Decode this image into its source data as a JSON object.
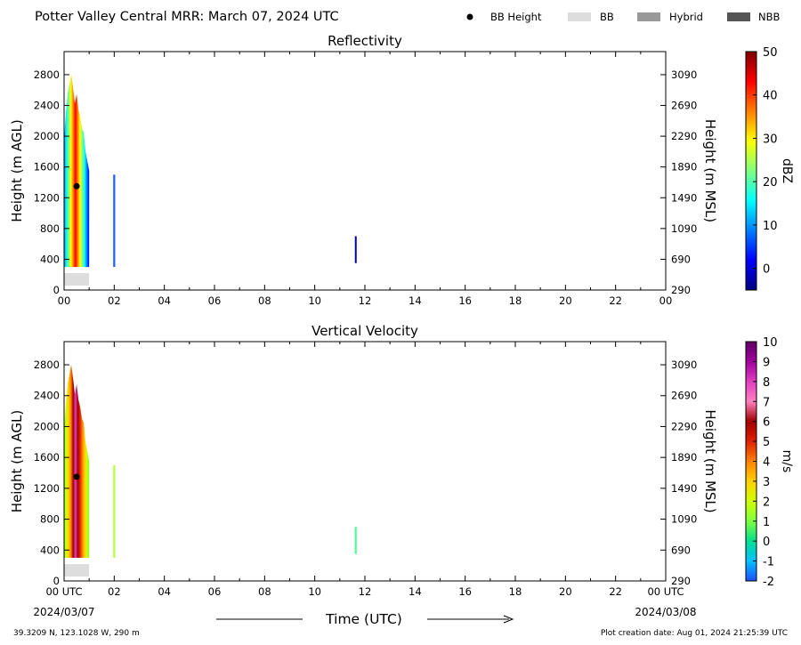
{
  "header": {
    "title": "Potter Valley Central MRR:  March 07, 2024 UTC",
    "legend": [
      {
        "label": "BB Height",
        "kind": "dot",
        "color": "#000000"
      },
      {
        "label": "BB",
        "kind": "swatch",
        "color": "#dddddd"
      },
      {
        "label": "Hybrid",
        "kind": "swatch",
        "color": "#999999"
      },
      {
        "label": "NBB",
        "kind": "swatch",
        "color": "#555555"
      }
    ]
  },
  "footer": {
    "location": "39.3209 N, 123.1028 W, 290 m",
    "creation": "Plot creation date: Aug 01, 2024 21:25:39 UTC",
    "xlabel": "Time (UTC)",
    "start_date": "2024/03/07",
    "end_date": "2024/03/08"
  },
  "chart_data": [
    {
      "type": "heatmap",
      "title": "Reflectivity",
      "ylabel": "Height (m AGL)",
      "y2label": "Height (m MSL)",
      "xticks": [
        "00",
        "02",
        "04",
        "06",
        "08",
        "10",
        "12",
        "14",
        "16",
        "18",
        "20",
        "22",
        "00"
      ],
      "yticks": [
        0,
        400,
        800,
        1200,
        1600,
        2000,
        2400,
        2800
      ],
      "y2ticks": [
        290,
        690,
        1090,
        1490,
        1890,
        2290,
        2690,
        3090
      ],
      "xlim": [
        0,
        24
      ],
      "ylim": [
        0,
        3100
      ],
      "colorbar": {
        "label": "dBZ",
        "min": -5,
        "max": 50,
        "ticks": [
          0,
          10,
          20,
          30,
          40,
          50
        ],
        "colors": [
          "#00007f",
          "#0000ff",
          "#007fff",
          "#00ffff",
          "#7fff7f",
          "#ffff00",
          "#ff7f00",
          "#ff0000",
          "#7f0000"
        ]
      },
      "bb_height": {
        "time": 0.5,
        "height": 1350
      },
      "bb_band": {
        "start": 0.0,
        "end": 1.0
      },
      "echoes": [
        {
          "t0": 0.0,
          "t1": 1.0,
          "h_base": 300,
          "h_top": 2800,
          "core_center": 0.5,
          "core_halfwidth": 0.28
        },
        {
          "t0": 1.96,
          "t1": 2.04,
          "h_base": 300,
          "h_top": 1500,
          "core_center": 2.0,
          "core_halfwidth": 0
        },
        {
          "t0": 11.6,
          "t1": 11.66,
          "h_base": 350,
          "h_top": 700,
          "core_center": 11.63,
          "core_halfwidth": 0
        }
      ]
    },
    {
      "type": "heatmap",
      "title": "Vertical Velocity",
      "ylabel": "Height (m AGL)",
      "y2label": "Height (m MSL)",
      "xticks": [
        "00 UTC",
        "02",
        "04",
        "06",
        "08",
        "10",
        "12",
        "14",
        "16",
        "18",
        "20",
        "22",
        "00 UTC"
      ],
      "yticks": [
        0,
        400,
        800,
        1200,
        1600,
        2000,
        2400,
        2800
      ],
      "y2ticks": [
        290,
        690,
        1090,
        1490,
        1890,
        2290,
        2690,
        3090
      ],
      "xlim": [
        0,
        24
      ],
      "ylim": [
        0,
        3100
      ],
      "colorbar": {
        "label": "m/s",
        "min": -2,
        "max": 10,
        "ticks": [
          -2,
          -1,
          0,
          1,
          2,
          3,
          4,
          5,
          6,
          7,
          8,
          9,
          10
        ],
        "colors": [
          "#1f4fff",
          "#00c0ff",
          "#00e08f",
          "#7fff3f",
          "#d0ff00",
          "#ffd000",
          "#ff8000",
          "#e02000",
          "#a00000",
          "#ff80c0",
          "#e040c0",
          "#a000a0",
          "#600060"
        ]
      },
      "bb_height": {
        "time": 0.5,
        "height": 1350
      },
      "bb_band": {
        "start": 0.0,
        "end": 1.0
      },
      "echoes": [
        {
          "t0": 0.0,
          "t1": 1.0,
          "h_base": 300,
          "h_top": 2800,
          "core_center": 0.5,
          "core_halfwidth": 0.28
        },
        {
          "t0": 1.96,
          "t1": 2.04,
          "h_base": 300,
          "h_top": 1500,
          "core_center": 2.0,
          "core_halfwidth": 0
        },
        {
          "t0": 11.6,
          "t1": 11.66,
          "h_base": 350,
          "h_top": 700,
          "core_center": 11.63,
          "core_halfwidth": 0
        }
      ]
    }
  ]
}
